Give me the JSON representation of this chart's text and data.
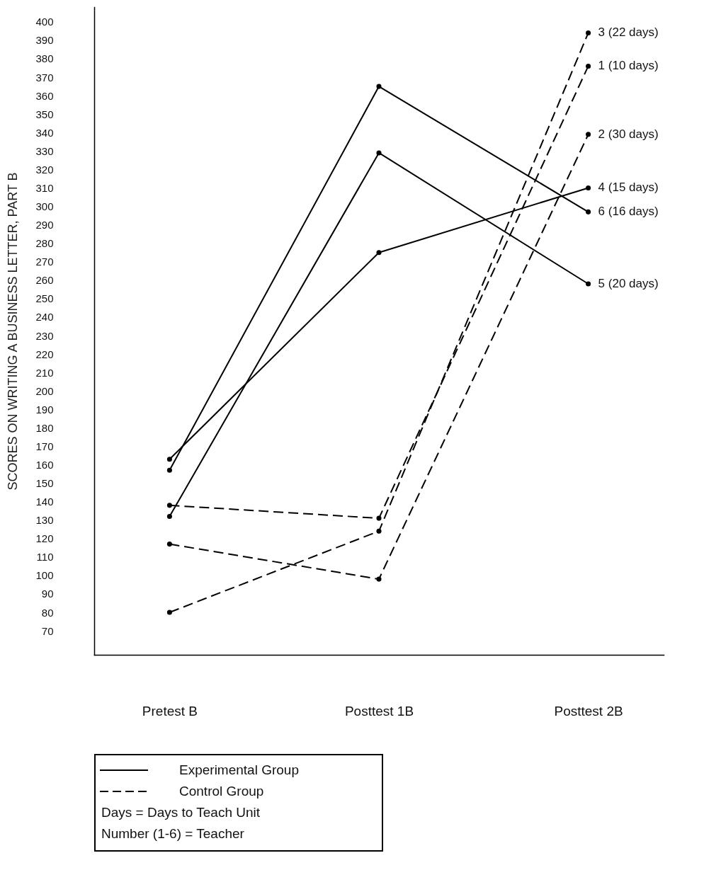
{
  "chart_data": {
    "type": "line",
    "ylabel": "SCORES ON WRITING A BUSINESS LETTER, PART B",
    "categories": [
      "Pretest  B",
      "Posttest  1B",
      "Posttest  2B"
    ],
    "ylim": [
      57,
      408
    ],
    "yticks": [
      70,
      80,
      90,
      100,
      110,
      120,
      130,
      140,
      150,
      160,
      170,
      180,
      190,
      200,
      210,
      220,
      230,
      240,
      250,
      260,
      270,
      280,
      290,
      300,
      310,
      320,
      330,
      340,
      350,
      360,
      370,
      380,
      390,
      400
    ],
    "grid": false,
    "marker": "circle",
    "series": [
      {
        "name": "3  (22 days)",
        "color": "#000000",
        "line_style": "dashed",
        "values": [
          80,
          124,
          394
        ]
      },
      {
        "name": "1  (10 days)",
        "color": "#000000",
        "line_style": "dashed",
        "values": [
          138,
          131,
          376
        ]
      },
      {
        "name": "2  (30 days)",
        "color": "#000000",
        "line_style": "dashed",
        "values": [
          117,
          98,
          339
        ]
      },
      {
        "name": "4  (15 days)",
        "color": "#000000",
        "line_style": "solid",
        "values": [
          163,
          275,
          310
        ]
      },
      {
        "name": "6  (16 days)",
        "color": "#000000",
        "line_style": "solid",
        "values": [
          157,
          365,
          297
        ]
      },
      {
        "name": "5  (20 days)",
        "color": "#000000",
        "line_style": "solid",
        "values": [
          132,
          329,
          258
        ]
      }
    ],
    "annotations": [
      "Experimental Group",
      "Control Group",
      "Days = Days to Teach Unit",
      "Number (1-6) = Teacher"
    ]
  }
}
